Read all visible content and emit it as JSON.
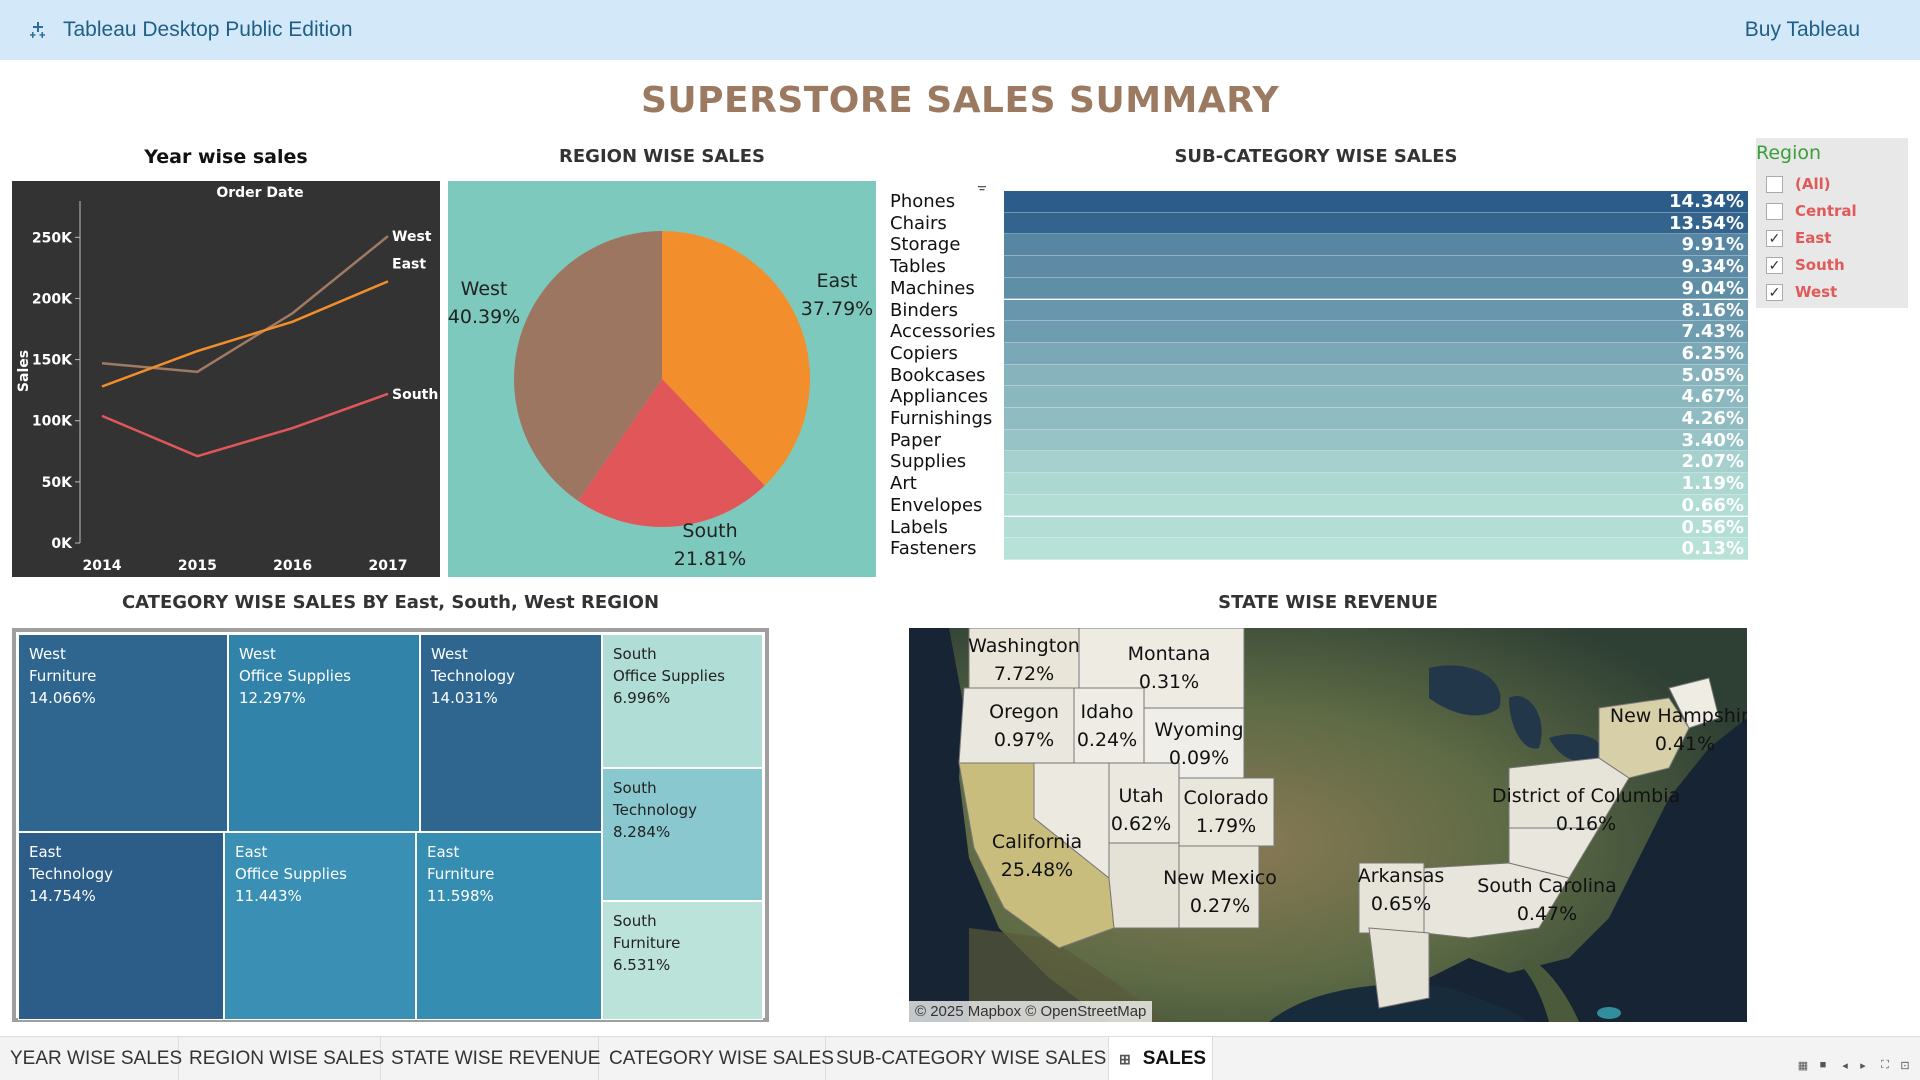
{
  "topbar": {
    "app_title": "Tableau Desktop Public Edition",
    "buy_label": "Buy Tableau",
    "logo_icon": "tableau-logo-icon"
  },
  "dashboard": {
    "title": "SUPERSTORE SALES SUMMARY"
  },
  "year_sales": {
    "title": "Year wise sales",
    "chart_data": {
      "type": "line",
      "title": "Order Date",
      "ylabel": "Sales",
      "x": [
        "2014",
        "2015",
        "2016",
        "2017"
      ],
      "ylim": [
        0,
        265000
      ],
      "yticks": [
        0,
        50000,
        100000,
        150000,
        200000,
        250000
      ],
      "ytick_labels": [
        "0K",
        "50K",
        "100K",
        "150K",
        "200K",
        "250K"
      ],
      "series": [
        {
          "name": "West",
          "color": "#a07a62",
          "values": [
            147000,
            140000,
            188000,
            251000
          ]
        },
        {
          "name": "East",
          "color": "#f28e2b",
          "values": [
            128000,
            157000,
            181000,
            214000
          ]
        },
        {
          "name": "South",
          "color": "#e15759",
          "values": [
            104000,
            71000,
            94000,
            122000
          ]
        }
      ]
    }
  },
  "region_sales": {
    "title": "REGION WISE SALES",
    "chart_data": {
      "type": "pie",
      "slices": [
        {
          "name": "East",
          "value": 37.79,
          "label": "37.79%",
          "color": "#f28e2b"
        },
        {
          "name": "South",
          "value": 21.81,
          "label": "21.81%",
          "color": "#e15759"
        },
        {
          "name": "West",
          "value": 40.39,
          "label": "40.39%",
          "color": "#9c7660"
        }
      ]
    }
  },
  "subcategory_sales": {
    "title": "SUB-CATEGORY WISE SALES",
    "sort_icon": "sort-icon",
    "chart_data": {
      "type": "bar",
      "categories": [
        "Phones",
        "Chairs",
        "Storage",
        "Tables",
        "Machines",
        "Binders",
        "Accessories",
        "Copiers",
        "Bookcases",
        "Appliances",
        "Furnishings",
        "Paper",
        "Supplies",
        "Art",
        "Envelopes",
        "Labels",
        "Fasteners"
      ],
      "values": [
        14.34,
        13.54,
        9.91,
        9.34,
        9.04,
        8.16,
        7.43,
        6.25,
        5.05,
        4.67,
        4.26,
        3.4,
        2.07,
        1.19,
        0.66,
        0.56,
        0.13
      ],
      "labels": [
        "14.34%",
        "13.54%",
        "9.91%",
        "9.34%",
        "9.04%",
        "8.16%",
        "7.43%",
        "6.25%",
        "5.05%",
        "4.67%",
        "4.26%",
        "3.40%",
        "2.07%",
        "1.19%",
        "0.66%",
        "0.56%",
        "0.13%"
      ],
      "color_range": [
        "#b9e3d8",
        "#2b5c8a"
      ]
    }
  },
  "region_filter": {
    "title": "Region",
    "items": [
      {
        "label": "(All)",
        "checked": false
      },
      {
        "label": "Central",
        "checked": false
      },
      {
        "label": "East",
        "checked": true
      },
      {
        "label": "South",
        "checked": true
      },
      {
        "label": "West",
        "checked": true
      }
    ],
    "check_icon": "checkmark-icon"
  },
  "category_sales": {
    "title": "CATEGORY WISE SALES BY East, South, West REGION",
    "cells": [
      {
        "region": "West",
        "category": "Furniture",
        "pct": "14.066%",
        "color": "#2e6690",
        "text_color": "#ffffff"
      },
      {
        "region": "West",
        "category": "Office Supplies",
        "pct": "12.297%",
        "color": "#3283aa",
        "text_color": "#ffffff"
      },
      {
        "region": "West",
        "category": "Technology",
        "pct": "14.031%",
        "color": "#2e6690",
        "text_color": "#ffffff"
      },
      {
        "region": "South",
        "category": "Office Supplies",
        "pct": "6.996%",
        "color": "#b0ddd6",
        "text_color": "#222222"
      },
      {
        "region": "South",
        "category": "Technology",
        "pct": "8.284%",
        "color": "#8ac8cf",
        "text_color": "#222222"
      },
      {
        "region": "South",
        "category": "Furniture",
        "pct": "6.531%",
        "color": "#bce3d9",
        "text_color": "#222222"
      },
      {
        "region": "East",
        "category": "Technology",
        "pct": "14.754%",
        "color": "#2c5c88",
        "text_color": "#ffffff"
      },
      {
        "region": "East",
        "category": "Office Supplies",
        "pct": "11.443%",
        "color": "#3a90b4",
        "text_color": "#ffffff"
      },
      {
        "region": "East",
        "category": "Furniture",
        "pct": "11.598%",
        "color": "#368db2",
        "text_color": "#ffffff"
      }
    ]
  },
  "state_revenue": {
    "title": "STATE WISE REVENUE",
    "attribution": "© 2025 Mapbox © OpenStreetMap",
    "states": [
      {
        "name": "Washington",
        "pct": "7.72%"
      },
      {
        "name": "Montana",
        "pct": "0.31%"
      },
      {
        "name": "Oregon",
        "pct": "0.97%"
      },
      {
        "name": "Idaho",
        "pct": "0.24%"
      },
      {
        "name": "Wyoming",
        "pct": "0.09%"
      },
      {
        "name": "California",
        "pct": "25.48%"
      },
      {
        "name": "Utah",
        "pct": "0.62%"
      },
      {
        "name": "Colorado",
        "pct": "1.79%"
      },
      {
        "name": "New Mexico",
        "pct": "0.27%"
      },
      {
        "name": "Arkansas",
        "pct": "0.65%"
      },
      {
        "name": "South Carolina",
        "pct": "0.47%"
      },
      {
        "name": "District of Columbia",
        "pct": "0.16%"
      },
      {
        "name": "New Hampshire",
        "pct": "0.41%"
      }
    ]
  },
  "tabs": [
    {
      "label": "YEAR WISE SALES",
      "active": false
    },
    {
      "label": "REGION WISE SALES",
      "active": false
    },
    {
      "label": "STATE WISE REVENUE",
      "active": false
    },
    {
      "label": "CATEGORY WISE SALES",
      "active": false
    },
    {
      "label": "SUB-CATEGORY WISE SALES",
      "active": false
    },
    {
      "label": "SALES",
      "active": true,
      "icon": "dashboard-grid-icon"
    }
  ],
  "status_controls": [
    "grid-view-icon",
    "filmstrip-view-icon",
    "prev-sheet-icon",
    "next-sheet-icon",
    "fullscreen-icon",
    "presentation-icon"
  ]
}
